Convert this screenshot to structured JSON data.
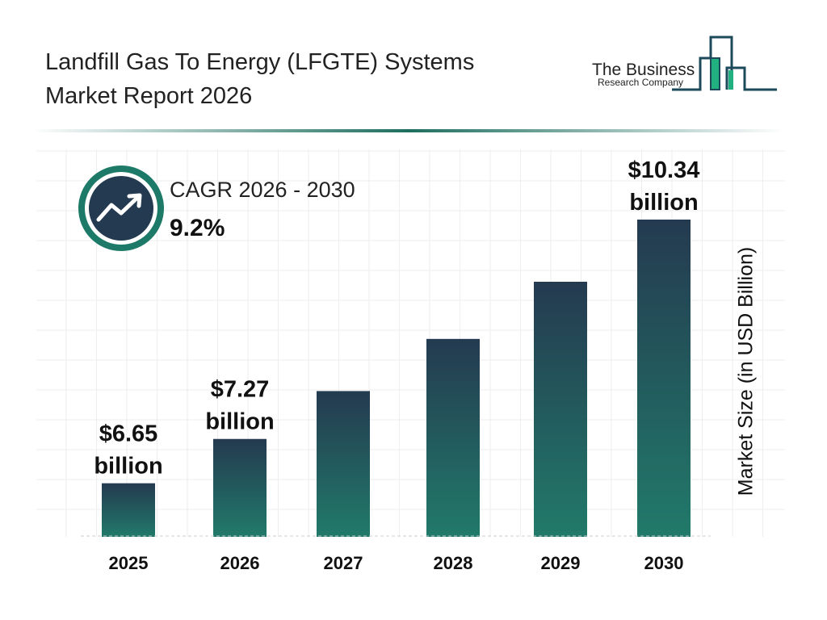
{
  "header": {
    "title_line1": "Landfill Gas To Energy (LFGTE) Systems",
    "title_line2": "Market Report 2026"
  },
  "logo": {
    "line1": "The Business",
    "line2": "Research Company"
  },
  "cagr": {
    "label": "CAGR 2026 - 2030",
    "value": "9.2%",
    "icon": "trending-up-icon"
  },
  "colors": {
    "bar_top": "#243a50",
    "bar_bottom": "#217a6a",
    "accent": "#1e7a68"
  },
  "chart_data": {
    "type": "bar",
    "categories": [
      "2025",
      "2026",
      "2027",
      "2028",
      "2029",
      "2030"
    ],
    "values": [
      6.65,
      7.27,
      7.94,
      8.67,
      9.47,
      10.34
    ],
    "data_labels": [
      {
        "index": 0,
        "line1": "$6.65",
        "line2": "billion"
      },
      {
        "index": 1,
        "line1": "$7.27",
        "line2": "billion"
      },
      {
        "index": 5,
        "line1": "$10.34",
        "line2": "billion"
      }
    ],
    "ylabel": "Market Size (in USD Billion)",
    "xlabel": "",
    "grid": true
  }
}
